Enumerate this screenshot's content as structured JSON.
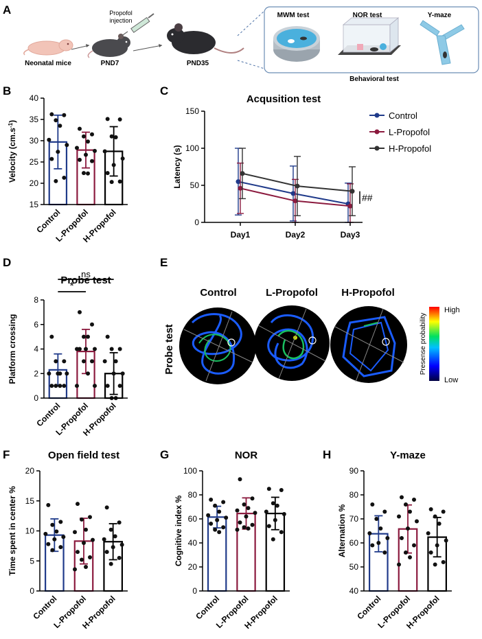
{
  "colors": {
    "control": "#1f3a8a",
    "lprop": "#8b1a3e",
    "hprop": "#000000",
    "panelbox": "#6b8db5",
    "water": "#4ab0dd",
    "maze": "#8ecae6"
  },
  "panel_a": {
    "letter": "A",
    "stage1": "Neonatal mice",
    "stage2": "PND7",
    "stage3": "PND35",
    "injection": [
      "Propofol",
      "injection"
    ],
    "tests": [
      "MWM test",
      "NOR test",
      "Y-maze"
    ],
    "box_label": "Behavioral test"
  },
  "panel_e": {
    "letter": "E",
    "groups": [
      "Control",
      "L-Propofol",
      "H-Propofol"
    ],
    "row_label": "Probe test",
    "scale_title": "Presense probability",
    "scale_high": "High",
    "scale_low": "Low"
  },
  "chart_data": [
    {
      "id": "B",
      "letter": "B",
      "type": "bar",
      "title": "",
      "ylabel": "Velocity (cm.s",
      "ylabel_sup": "-1",
      "ylabel_end": ")",
      "categories": [
        "Control",
        "L-Propofol",
        "H-Propofol"
      ],
      "ylim": [
        15,
        40
      ],
      "yticks": [
        15,
        20,
        25,
        30,
        35,
        40
      ],
      "means": [
        29.7,
        27.8,
        27.5
      ],
      "sd": [
        6.3,
        4.2,
        5.8
      ],
      "points": [
        [
          36.2,
          36.0,
          34.8,
          33.5,
          30.2,
          29.0,
          27.4,
          25.7,
          21.3,
          20.5
        ],
        [
          32.8,
          31.5,
          31.0,
          29.8,
          28.3,
          27.6,
          26.7,
          25.5,
          25.2,
          22.4,
          22.3
        ],
        [
          35.1,
          35.0,
          31.0,
          30.8,
          27.5,
          25.8,
          24.3,
          22.4,
          20.4,
          20.3
        ]
      ]
    },
    {
      "id": "C",
      "letter": "C",
      "type": "line",
      "title": "Acqusition test",
      "ylabel": "Latency (s)",
      "categories": [
        "Day1",
        "Day2",
        "Day3"
      ],
      "ylim": [
        0,
        150
      ],
      "yticks": [
        0,
        50,
        100,
        150
      ],
      "series": [
        {
          "name": "Control",
          "color": "#1f3a8a",
          "values": [
            55,
            39,
            25
          ],
          "err": [
            45,
            37,
            28
          ]
        },
        {
          "name": "L-Propofol",
          "color": "#8b1a3e",
          "values": [
            46,
            29,
            22
          ],
          "err": [
            34,
            29,
            30
          ]
        },
        {
          "name": "H-Propofol",
          "color": "#333333",
          "values": [
            66,
            49,
            42
          ],
          "err": [
            34,
            40,
            33
          ]
        }
      ],
      "annotation": "##"
    },
    {
      "id": "D",
      "letter": "D",
      "type": "bar",
      "title": "Probe test",
      "ylabel": "Platform crossing",
      "categories": [
        "Control",
        "L-Propofol",
        "H-Propofol"
      ],
      "ylim": [
        0,
        8
      ],
      "yticks": [
        0,
        2,
        4,
        6,
        8
      ],
      "means": [
        2.3,
        3.8,
        2.0
      ],
      "sd": [
        1.3,
        1.8,
        1.7
      ],
      "points": [
        [
          5,
          3,
          3,
          2,
          2,
          2,
          2,
          1,
          1,
          1,
          1
        ],
        [
          7,
          6,
          5,
          5,
          4,
          4,
          4,
          4,
          3,
          3,
          2,
          1,
          1
        ],
        [
          5,
          4,
          4,
          3,
          3,
          2,
          2,
          1,
          1,
          0,
          0
        ]
      ],
      "significance": [
        {
          "label": "*",
          "from": 0,
          "to": 1
        },
        {
          "label": "ns",
          "from": 0,
          "to": 2
        }
      ]
    },
    {
      "id": "F",
      "letter": "F",
      "type": "bar",
      "title": "Open field test",
      "ylabel": "Time spent in center %",
      "categories": [
        "Control",
        "L-Propofol",
        "H-Propofol"
      ],
      "ylim": [
        0,
        20
      ],
      "yticks": [
        0,
        5,
        10,
        15,
        20
      ],
      "means": [
        9.3,
        8.3,
        8.2
      ],
      "sd": [
        2.7,
        3.8,
        3.0
      ],
      "points": [
        [
          14.3,
          11.5,
          11.0,
          9.9,
          9.5,
          9.0,
          8.6,
          7.8,
          7.3,
          6.8
        ],
        [
          14.5,
          12.3,
          11.9,
          10.2,
          9.8,
          8.5,
          8.0,
          6.5,
          5.6,
          5.2,
          4.0,
          3.6
        ],
        [
          13.9,
          11.4,
          10.2,
          9.1,
          8.6,
          7.7,
          7.3,
          6.5,
          5.5,
          4.5
        ]
      ]
    },
    {
      "id": "G",
      "letter": "G",
      "type": "bar",
      "title": "NOR",
      "ylabel": "Cognitive index %",
      "categories": [
        "Control",
        "L-Propofol",
        "H-Propofol"
      ],
      "ylim": [
        0,
        100
      ],
      "yticks": [
        0,
        20,
        40,
        60,
        80,
        100
      ],
      "means": [
        61.5,
        64.5,
        64.5
      ],
      "sd": [
        9.0,
        13.0,
        13.5
      ],
      "points": [
        [
          76,
          74,
          71,
          66,
          63,
          61,
          59,
          56,
          53,
          51,
          49
        ],
        [
          93,
          77,
          72,
          69,
          67,
          65,
          62,
          57,
          55,
          53,
          52,
          51
        ],
        [
          85,
          84,
          73,
          71,
          66,
          64,
          59,
          54,
          49,
          43
        ]
      ]
    },
    {
      "id": "H",
      "letter": "H",
      "type": "bar",
      "title": "Y-maze",
      "ylabel": "Alternation %",
      "categories": [
        "Control",
        "L-Propofol",
        "H-Propofol"
      ],
      "ylim": [
        40,
        90
      ],
      "yticks": [
        40,
        50,
        60,
        70,
        80,
        90
      ],
      "means": [
        63.8,
        65.8,
        62.4
      ],
      "sd": [
        7.5,
        10.0,
        8.2
      ],
      "points": [
        [
          76,
          73,
          70,
          66,
          64,
          62,
          60,
          59,
          56
        ],
        [
          79,
          78,
          76,
          73,
          71,
          69,
          66,
          62,
          59,
          56,
          54,
          51
        ],
        [
          74,
          73,
          71,
          68,
          64,
          61,
          59,
          56,
          52,
          51
        ]
      ]
    }
  ]
}
